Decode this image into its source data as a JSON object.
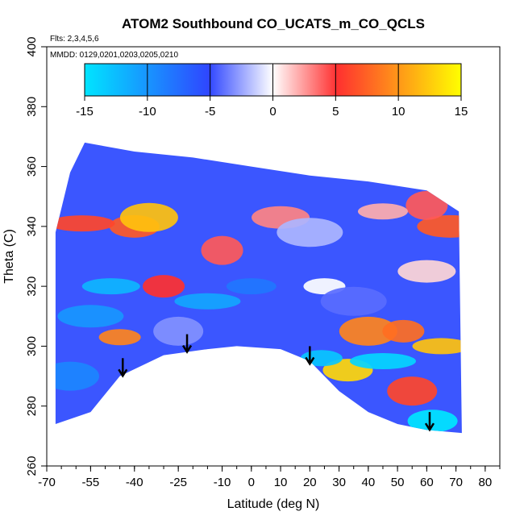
{
  "chart_data": {
    "type": "heatmap",
    "title": "ATOM2 Southbound CO_UCATS_m_CO_QCLS",
    "flights_label": "Flts: 2,3,4,5,6",
    "dates_label": "MMDD: 0129,0201,0203,0205,0210",
    "xlabel": "Latitude (deg N)",
    "ylabel": "Theta (C)",
    "xlim": [
      -70,
      85
    ],
    "ylim": [
      260,
      400
    ],
    "x_ticks": [
      -70,
      -55,
      -40,
      -25,
      -10,
      0,
      10,
      20,
      30,
      40,
      50,
      60,
      70,
      80
    ],
    "y_ticks": [
      260,
      280,
      300,
      320,
      340,
      360,
      380,
      400
    ],
    "colorbar": {
      "range": [
        -15,
        15
      ],
      "ticks": [
        -15,
        -10,
        -5,
        0,
        5,
        10,
        15
      ],
      "colors": [
        "#00e5ff",
        "#2f46ff",
        "#ffffff",
        "#ff3030",
        "#ffff00"
      ]
    },
    "domain_top": [
      [
        -67,
        338
      ],
      [
        -62,
        358
      ],
      [
        -57,
        368
      ],
      [
        -40,
        365
      ],
      [
        -20,
        363
      ],
      [
        0,
        360
      ],
      [
        20,
        357
      ],
      [
        40,
        355
      ],
      [
        60,
        352
      ],
      [
        71,
        345
      ]
    ],
    "domain_bottom": [
      [
        -67,
        274
      ],
      [
        -55,
        278
      ],
      [
        -45,
        290
      ],
      [
        -30,
        297
      ],
      [
        -15,
        299
      ],
      [
        -5,
        300
      ],
      [
        10,
        299
      ],
      [
        20,
        295
      ],
      [
        30,
        285
      ],
      [
        40,
        278
      ],
      [
        50,
        274
      ],
      [
        55,
        273
      ],
      [
        60,
        272
      ],
      [
        72,
        271
      ]
    ],
    "arrows": [
      {
        "lat": -44,
        "theta": 296
      },
      {
        "lat": -22,
        "theta": 304
      },
      {
        "lat": 20,
        "theta": 300
      },
      {
        "lat": 61,
        "theta": 278
      }
    ],
    "patches": [
      {
        "lat": -45,
        "theta": 303,
        "value": 9
      },
      {
        "lat": -40,
        "theta": 340,
        "value": 7
      },
      {
        "lat": -35,
        "theta": 343,
        "value": 12
      },
      {
        "lat": -58,
        "theta": 341,
        "value": 6
      },
      {
        "lat": -30,
        "theta": 320,
        "value": 5
      },
      {
        "lat": -25,
        "theta": 305,
        "value": -3
      },
      {
        "lat": -48,
        "theta": 320,
        "value": -12
      },
      {
        "lat": -55,
        "theta": 310,
        "value": -10
      },
      {
        "lat": -10,
        "theta": 332,
        "value": 4
      },
      {
        "lat": 0,
        "theta": 320,
        "value": -8
      },
      {
        "lat": 10,
        "theta": 343,
        "value": 3
      },
      {
        "lat": 20,
        "theta": 338,
        "value": -2
      },
      {
        "lat": 25,
        "theta": 320,
        "value": 0
      },
      {
        "lat": 33,
        "theta": 292,
        "value": 13
      },
      {
        "lat": 40,
        "theta": 305,
        "value": 9
      },
      {
        "lat": 45,
        "theta": 295,
        "value": -14
      },
      {
        "lat": 52,
        "theta": 305,
        "value": 8
      },
      {
        "lat": 55,
        "theta": 285,
        "value": 6
      },
      {
        "lat": 65,
        "theta": 300,
        "value": 12
      },
      {
        "lat": 68,
        "theta": 340,
        "value": 7
      },
      {
        "lat": 60,
        "theta": 347,
        "value": 4
      },
      {
        "lat": 45,
        "theta": 345,
        "value": 2
      },
      {
        "lat": 60,
        "theta": 325,
        "value": 1
      },
      {
        "lat": 35,
        "theta": 315,
        "value": -4
      },
      {
        "lat": 24,
        "theta": 296,
        "value": -13
      },
      {
        "lat": 62,
        "theta": 275,
        "value": -15
      },
      {
        "lat": -62,
        "theta": 290,
        "value": -9
      },
      {
        "lat": -15,
        "theta": 315,
        "value": -11
      }
    ]
  }
}
